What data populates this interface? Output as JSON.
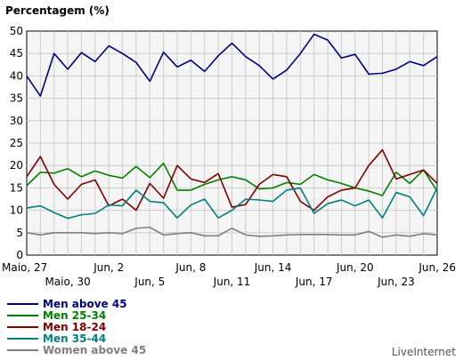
{
  "chart_data": {
    "type": "line",
    "title": "Percentagem (%)",
    "credit": "LiveInternet",
    "ylim": [
      0,
      50
    ],
    "yticks": [
      0,
      5,
      10,
      15,
      20,
      25,
      30,
      35,
      40,
      45,
      50
    ],
    "x_count": 31,
    "xticks_row1": [
      {
        "i": 0,
        "label": "Maio, 27"
      },
      {
        "i": 6,
        "label": "Jun, 2"
      },
      {
        "i": 12,
        "label": "Jun, 8"
      },
      {
        "i": 18,
        "label": "Jun, 14"
      },
      {
        "i": 24,
        "label": "Jun, 20"
      },
      {
        "i": 30,
        "label": "Jun, 26"
      }
    ],
    "xticks_row2": [
      {
        "i": 3,
        "label": "Maio, 30"
      },
      {
        "i": 9,
        "label": "Jun, 5"
      },
      {
        "i": 15,
        "label": "Jun, 11"
      },
      {
        "i": 21,
        "label": "Jun, 17"
      },
      {
        "i": 27,
        "label": "Jun, 23"
      }
    ],
    "grid": true,
    "legend_position": "bottom-left",
    "series": [
      {
        "name": "Men above 45",
        "color": "#000080",
        "values": [
          40,
          35.5,
          45,
          41.5,
          45.2,
          43.2,
          46.7,
          45,
          43,
          38.8,
          45.3,
          42,
          43.5,
          41,
          44.5,
          47.3,
          44.3,
          42.3,
          39.3,
          41.3,
          45,
          49.3,
          48,
          44,
          44.8,
          40.4,
          40.6,
          41.5,
          43.2,
          42.3,
          44.3
        ]
      },
      {
        "name": "Men 25-34",
        "color": "#008000",
        "values": [
          15.5,
          18.5,
          18.3,
          19.3,
          17.5,
          18.8,
          17.8,
          17.2,
          19.8,
          17.3,
          20.5,
          14.5,
          14.5,
          15.8,
          16.8,
          17.5,
          16.8,
          14.8,
          15,
          16.2,
          15.8,
          18,
          16.8,
          16,
          15,
          14.3,
          13.3,
          18.5,
          16,
          19,
          14.3
        ]
      },
      {
        "name": "Men 18-24",
        "color": "#800000",
        "values": [
          17.5,
          22,
          15.8,
          12.5,
          15.8,
          16.8,
          11,
          12.5,
          10,
          16,
          12.7,
          20,
          17,
          16.2,
          18.2,
          10.7,
          11.3,
          15.8,
          18,
          17.5,
          12,
          10,
          13,
          14.5,
          15,
          20,
          23.5,
          17,
          18,
          19,
          16
        ]
      },
      {
        "name": "Men 35-44",
        "color": "#008080",
        "values": [
          10.5,
          11,
          9.5,
          8.2,
          9,
          9.3,
          11.2,
          11,
          14.5,
          12,
          11.7,
          8.3,
          11.2,
          12.5,
          8.3,
          10,
          12.5,
          12.3,
          12,
          14.5,
          15,
          9.3,
          11.5,
          12.3,
          11,
          12.3,
          8.3,
          14,
          13,
          8.8,
          15
        ]
      },
      {
        "name": "Women above 45",
        "color": "#808080",
        "values": [
          5,
          4.5,
          5,
          5,
          5,
          4.8,
          5,
          4.8,
          6,
          6.2,
          4.5,
          4.8,
          5,
          4.3,
          4.3,
          6,
          4.5,
          4.2,
          4.3,
          4.5,
          4.6,
          4.6,
          4.6,
          4.5,
          4.5,
          5.3,
          4,
          4.5,
          4.2,
          4.8,
          4.5
        ]
      }
    ]
  }
}
